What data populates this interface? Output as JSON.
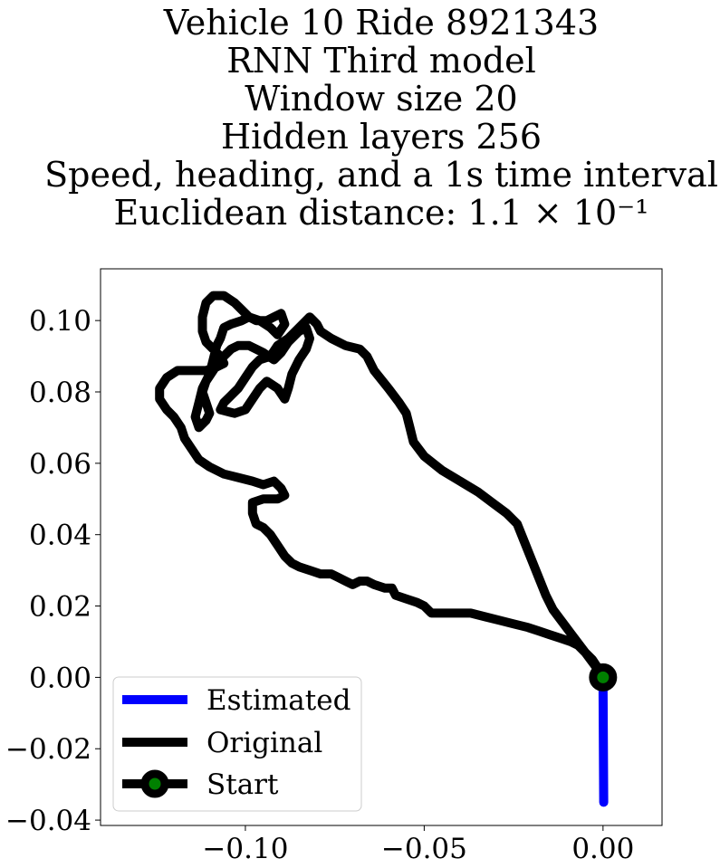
{
  "chart_data": {
    "type": "line",
    "title_lines": [
      "Vehicle 10 Ride 8921343",
      "RNN Third model",
      "Window size 20",
      "Hidden layers 256",
      "Speed, heading, and a 1s time interval",
      "Euclidean distance: 1.1 × 10⁻¹"
    ],
    "xlim": [
      -0.1405,
      0.0165
    ],
    "ylim": [
      -0.0415,
      0.1145
    ],
    "x_ticks": [
      -0.1,
      -0.05,
      0.0
    ],
    "x_tick_labels": [
      "−0.10",
      "−0.05",
      "0.00"
    ],
    "y_ticks": [
      -0.04,
      -0.02,
      0.0,
      0.02,
      0.04,
      0.06,
      0.08,
      0.1
    ],
    "y_tick_labels": [
      "−0.04",
      "−0.02",
      "0.00",
      "0.02",
      "0.04",
      "0.06",
      "0.08",
      "0.10"
    ],
    "grid": false,
    "legend_position": "lower-left",
    "series": [
      {
        "name": "Estimated",
        "color": "#0000ff",
        "points": [
          [
            0.0,
            0.0
          ],
          [
            0.0002,
            -0.035
          ]
        ]
      },
      {
        "name": "Original",
        "color": "#000000",
        "points": [
          [
            0.0,
            0.0
          ],
          [
            -0.002,
            0.003
          ],
          [
            -0.005,
            0.007
          ],
          [
            -0.008,
            0.011
          ],
          [
            -0.011,
            0.015
          ],
          [
            -0.014,
            0.019
          ],
          [
            -0.016,
            0.023
          ],
          [
            -0.018,
            0.028
          ],
          [
            -0.02,
            0.033
          ],
          [
            -0.022,
            0.038
          ],
          [
            -0.024,
            0.043
          ],
          [
            -0.027,
            0.046
          ],
          [
            -0.031,
            0.049
          ],
          [
            -0.035,
            0.052
          ],
          [
            -0.04,
            0.055
          ],
          [
            -0.045,
            0.058
          ],
          [
            -0.05,
            0.062
          ],
          [
            -0.053,
            0.066
          ],
          [
            -0.054,
            0.07
          ],
          [
            -0.055,
            0.074
          ],
          [
            -0.057,
            0.077
          ],
          [
            -0.06,
            0.081
          ],
          [
            -0.064,
            0.086
          ],
          [
            -0.066,
            0.09
          ],
          [
            -0.068,
            0.092
          ],
          [
            -0.072,
            0.093
          ],
          [
            -0.076,
            0.095
          ],
          [
            -0.079,
            0.097
          ],
          [
            -0.08,
            0.099
          ],
          [
            -0.081,
            0.1
          ],
          [
            -0.082,
            0.101
          ],
          [
            -0.085,
            0.098
          ],
          [
            -0.088,
            0.095
          ],
          [
            -0.091,
            0.093
          ],
          [
            -0.093,
            0.09
          ],
          [
            -0.096,
            0.089
          ],
          [
            -0.098,
            0.087
          ],
          [
            -0.1,
            0.084
          ],
          [
            -0.102,
            0.081
          ],
          [
            -0.104,
            0.079
          ],
          [
            -0.106,
            0.077
          ],
          [
            -0.107,
            0.075
          ],
          [
            -0.103,
            0.074
          ],
          [
            -0.1,
            0.075
          ],
          [
            -0.098,
            0.078
          ],
          [
            -0.096,
            0.081
          ],
          [
            -0.094,
            0.083
          ],
          [
            -0.091,
            0.081
          ],
          [
            -0.089,
            0.078
          ],
          [
            -0.088,
            0.081
          ],
          [
            -0.087,
            0.085
          ],
          [
            -0.085,
            0.089
          ],
          [
            -0.083,
            0.092
          ],
          [
            -0.082,
            0.095
          ],
          [
            -0.083,
            0.098
          ],
          [
            -0.085,
            0.097
          ],
          [
            -0.088,
            0.094
          ],
          [
            -0.09,
            0.091
          ],
          [
            -0.092,
            0.089
          ],
          [
            -0.095,
            0.091
          ],
          [
            -0.099,
            0.093
          ],
          [
            -0.102,
            0.093
          ],
          [
            -0.104,
            0.092
          ],
          [
            -0.107,
            0.089
          ],
          [
            -0.109,
            0.086
          ],
          [
            -0.111,
            0.083
          ],
          [
            -0.112,
            0.08
          ],
          [
            -0.111,
            0.077
          ],
          [
            -0.11,
            0.074
          ],
          [
            -0.111,
            0.072
          ],
          [
            -0.113,
            0.07
          ],
          [
            -0.114,
            0.073
          ],
          [
            -0.113,
            0.077
          ],
          [
            -0.112,
            0.081
          ],
          [
            -0.11,
            0.085
          ],
          [
            -0.109,
            0.089
          ],
          [
            -0.108,
            0.093
          ],
          [
            -0.107,
            0.095
          ],
          [
            -0.106,
            0.098
          ],
          [
            -0.104,
            0.099
          ],
          [
            -0.101,
            0.1
          ],
          [
            -0.099,
            0.101
          ],
          [
            -0.096,
            0.1
          ],
          [
            -0.093,
            0.098
          ],
          [
            -0.091,
            0.096
          ],
          [
            -0.089,
            0.099
          ],
          [
            -0.09,
            0.102
          ],
          [
            -0.092,
            0.101
          ],
          [
            -0.094,
            0.1
          ],
          [
            -0.097,
            0.1
          ],
          [
            -0.099,
            0.101
          ],
          [
            -0.101,
            0.103
          ],
          [
            -0.103,
            0.105
          ],
          [
            -0.106,
            0.107
          ],
          [
            -0.109,
            0.107
          ],
          [
            -0.111,
            0.105
          ],
          [
            -0.112,
            0.101
          ],
          [
            -0.112,
            0.097
          ],
          [
            -0.111,
            0.094
          ],
          [
            -0.109,
            0.092
          ],
          [
            -0.107,
            0.09
          ],
          [
            -0.106,
            0.088
          ],
          [
            -0.108,
            0.087
          ],
          [
            -0.111,
            0.086
          ],
          [
            -0.115,
            0.086
          ],
          [
            -0.119,
            0.086
          ],
          [
            -0.122,
            0.084
          ],
          [
            -0.124,
            0.081
          ],
          [
            -0.124,
            0.078
          ],
          [
            -0.122,
            0.075
          ],
          [
            -0.12,
            0.073
          ],
          [
            -0.118,
            0.07
          ],
          [
            -0.117,
            0.067
          ],
          [
            -0.115,
            0.064
          ],
          [
            -0.113,
            0.061
          ],
          [
            -0.11,
            0.059
          ],
          [
            -0.106,
            0.057
          ],
          [
            -0.102,
            0.056
          ],
          [
            -0.098,
            0.055
          ],
          [
            -0.095,
            0.054
          ],
          [
            -0.092,
            0.055
          ],
          [
            -0.09,
            0.053
          ],
          [
            -0.089,
            0.051
          ],
          [
            -0.091,
            0.05
          ],
          [
            -0.095,
            0.05
          ],
          [
            -0.098,
            0.049
          ],
          [
            -0.098,
            0.046
          ],
          [
            -0.097,
            0.043
          ],
          [
            -0.095,
            0.042
          ],
          [
            -0.093,
            0.04
          ],
          [
            -0.091,
            0.037
          ],
          [
            -0.089,
            0.034
          ],
          [
            -0.087,
            0.032
          ],
          [
            -0.085,
            0.031
          ],
          [
            -0.082,
            0.03
          ],
          [
            -0.079,
            0.029
          ],
          [
            -0.076,
            0.029
          ],
          [
            -0.074,
            0.028
          ],
          [
            -0.072,
            0.027
          ],
          [
            -0.07,
            0.026
          ],
          [
            -0.068,
            0.027
          ],
          [
            -0.066,
            0.027
          ],
          [
            -0.064,
            0.026
          ],
          [
            -0.061,
            0.025
          ],
          [
            -0.059,
            0.025
          ],
          [
            -0.058,
            0.023
          ],
          [
            -0.055,
            0.022
          ],
          [
            -0.052,
            0.021
          ],
          [
            -0.05,
            0.02
          ],
          [
            -0.048,
            0.018
          ],
          [
            -0.045,
            0.018
          ],
          [
            -0.041,
            0.018
          ],
          [
            -0.037,
            0.018
          ],
          [
            -0.033,
            0.017
          ],
          [
            -0.029,
            0.016
          ],
          [
            -0.025,
            0.015
          ],
          [
            -0.021,
            0.014
          ],
          [
            -0.018,
            0.013
          ],
          [
            -0.015,
            0.012
          ],
          [
            -0.012,
            0.011
          ],
          [
            -0.009,
            0.01
          ],
          [
            -0.007,
            0.009
          ],
          [
            -0.005,
            0.007
          ],
          [
            -0.003,
            0.005
          ],
          [
            -0.001,
            0.002
          ],
          [
            0.0,
            0.0
          ]
        ]
      }
    ],
    "start_marker": {
      "name": "Start",
      "point": [
        0.0,
        0.0
      ],
      "face_color": "#008000",
      "edge_color": "#000000"
    }
  }
}
